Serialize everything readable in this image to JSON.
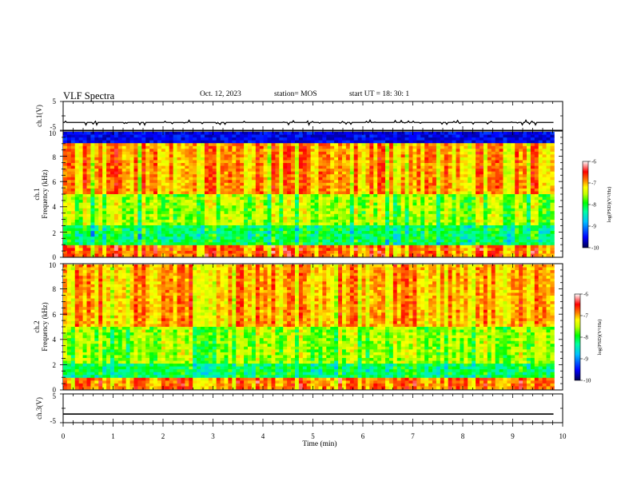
{
  "header": {
    "title": "VLF Spectra",
    "date": "Oct. 12, 2023",
    "station": "station= MOS",
    "start": "start  UT =   18: 30: 1"
  },
  "chart_data": [
    {
      "type": "line",
      "panel": "ch1-waveform",
      "ylabel": "ch.1(V)",
      "ylim": [
        -5,
        5
      ],
      "yticks": [
        "5",
        "-5"
      ],
      "xlim": [
        0,
        10
      ],
      "series": [
        {
          "values_approx": "near-constant ~ -2.3 V with small spikes"
        }
      ]
    },
    {
      "type": "heatmap",
      "panel": "ch1-spectrogram",
      "ylabel": "ch.1\nFrequency (kHz)",
      "ylim": [
        0,
        10
      ],
      "yticks": [
        "0",
        "2",
        "4",
        "6",
        "8",
        "10"
      ],
      "xlim": [
        0,
        10
      ],
      "colorbar": {
        "label": "log(PSD)(V²/Hz)",
        "range": [
          -10,
          -6
        ],
        "ticks": [
          "-6",
          "-7",
          "-8",
          "-9",
          "-10"
        ]
      },
      "features": {
        "upper_cutoff_khz": 9.0,
        "dense_band_khz": [
          5,
          9
        ],
        "lower_band_khz": [
          0,
          2.5
        ]
      }
    },
    {
      "type": "heatmap",
      "panel": "ch2-spectrogram",
      "ylabel": "ch.2\nFrequency (kHz)",
      "ylim": [
        0,
        10
      ],
      "yticks": [
        "0",
        "2",
        "4",
        "6",
        "8",
        "10"
      ],
      "xlim": [
        0,
        10
      ],
      "colorbar": {
        "label": "log(PSD)(V²/Hz)",
        "range": [
          -10,
          -6
        ],
        "ticks": [
          "-6",
          "-7",
          "-8",
          "-9",
          "-10"
        ]
      },
      "features": {
        "upper_cutoff_khz": 10.0,
        "dense_band_khz": [
          5,
          8.5
        ],
        "lower_band_khz": [
          0,
          2.0
        ]
      }
    },
    {
      "type": "line",
      "panel": "ch3-waveform",
      "ylabel": "ch.3(V)",
      "ylim": [
        -5,
        5
      ],
      "yticks": [
        "5",
        "-5"
      ],
      "xlim": [
        0,
        10
      ],
      "series": [
        {
          "values_approx": "constant ~ -2.0 V"
        }
      ]
    }
  ],
  "x_axis": {
    "label": "Time  (min)",
    "ticks": [
      "0",
      "1",
      "2",
      "3",
      "4",
      "5",
      "6",
      "7",
      "8",
      "9",
      "10"
    ],
    "data_end_min": 9.83
  },
  "colors": {
    "background": "#ffffff",
    "axes": "#000000",
    "colormap": [
      "#000060",
      "#0000ff",
      "#00a0ff",
      "#00ffff",
      "#00ff00",
      "#ffff00",
      "#ff8000",
      "#ff0000",
      "#ffffff"
    ]
  }
}
